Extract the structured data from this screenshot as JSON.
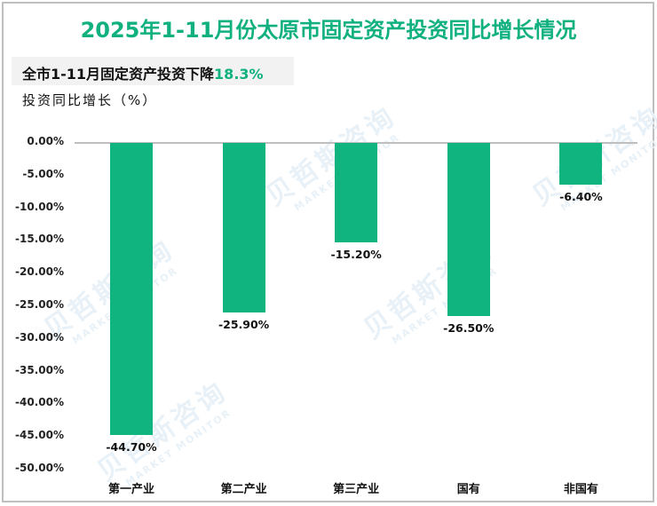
{
  "header": {
    "title": "2025年1-11月份太原市固定资产投资同比增长情况",
    "subtitle_prefix": "全市1-11月固定资产投资下降",
    "subtitle_highlight": "18.3%",
    "y_axis_label": "投资同比增长（%）"
  },
  "watermark": {
    "cn": "贝哲斯咨询",
    "en": "MARKET MONITOR"
  },
  "colors": {
    "bar": "#10b47f",
    "title": "#10b07f",
    "highlight": "#10b07f",
    "axis": "#bfbfbf"
  },
  "chart_data": {
    "type": "bar",
    "title": "2025年1-11月份太原市固定资产投资同比增长情况",
    "subtitle": "全市1-11月固定资产投资下降18.3%",
    "xlabel": "",
    "ylabel": "投资同比增长（%）",
    "categories": [
      "第一产业",
      "第二产业",
      "第三产业",
      "国有",
      "非国有"
    ],
    "values": [
      -44.7,
      -25.9,
      -15.2,
      -26.5,
      -6.4
    ],
    "value_labels": [
      "-44.70%",
      "-25.90%",
      "-15.20%",
      "-26.50%",
      "-6.40%"
    ],
    "ylim": [
      -50,
      0
    ],
    "yticks": [
      "0.00%",
      "-5.00%",
      "-10.00%",
      "-15.00%",
      "-20.00%",
      "-25.00%",
      "-30.00%",
      "-35.00%",
      "-40.00%",
      "-45.00%",
      "-50.00%"
    ],
    "grid": false,
    "legend": "none"
  }
}
